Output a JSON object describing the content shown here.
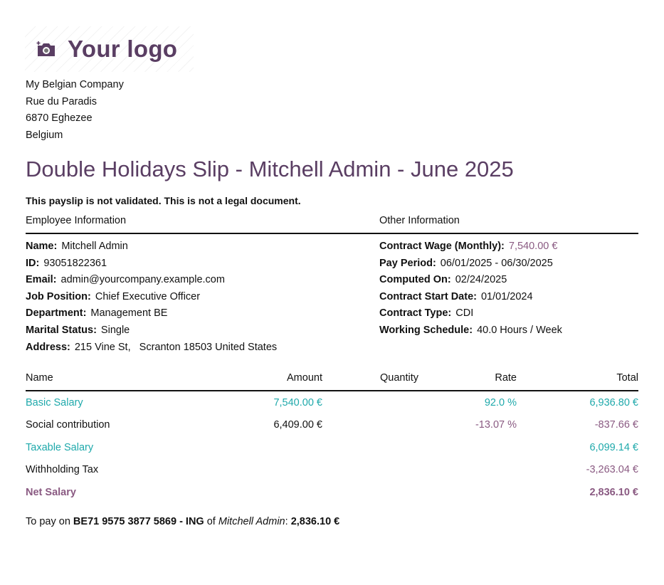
{
  "logo": {
    "text": "Your logo"
  },
  "company": {
    "lines": [
      "My Belgian Company",
      "Rue du Paradis",
      "6870 Eghezee",
      "Belgium"
    ]
  },
  "title": "Double Holidays Slip - Mitchell Admin - June 2025",
  "warning": "This payslip is not validated. This is not a legal document.",
  "employee": {
    "heading": "Employee Information",
    "fields": [
      {
        "label": "Name:",
        "value": "Mitchell Admin"
      },
      {
        "label": "ID:",
        "value": "93051822361"
      },
      {
        "label": "Email:",
        "value": "admin@yourcompany.example.com"
      },
      {
        "label": "Job Position:",
        "value": "Chief Executive Officer"
      },
      {
        "label": "Department:",
        "value": "Management BE"
      },
      {
        "label": "Marital Status:",
        "value": "Single"
      },
      {
        "label": "Address:",
        "value": "215 Vine St,   Scranton 18503 United States"
      }
    ]
  },
  "other": {
    "heading": "Other Information",
    "fields": [
      {
        "label": "Contract Wage (Monthly):",
        "value": "7,540.00 €"
      },
      {
        "label": "Pay Period:",
        "value": "06/01/2025 - 06/30/2025"
      },
      {
        "label": "Computed On:",
        "value": "02/24/2025"
      },
      {
        "label": "Contract Start Date:",
        "value": "01/01/2024"
      },
      {
        "label": "Contract Type:",
        "value": "CDI"
      },
      {
        "label": "Working Schedule:",
        "value": "40.0 Hours / Week"
      }
    ]
  },
  "table": {
    "headers": [
      "Name",
      "Amount",
      "Quantity",
      "Rate",
      "Total"
    ],
    "rows": [
      {
        "name": "Basic Salary",
        "amount": "7,540.00 €",
        "quantity": "",
        "rate": "92.0 %",
        "total": "6,936.80 €"
      },
      {
        "name": "Social contribution",
        "amount": "6,409.00 €",
        "quantity": "",
        "rate": "-13.07 %",
        "total": "-837.66 €"
      },
      {
        "name": "Taxable Salary",
        "amount": "",
        "quantity": "",
        "rate": "",
        "total": "6,099.14 €"
      },
      {
        "name": "Withholding Tax",
        "amount": "",
        "quantity": "",
        "rate": "",
        "total": "-3,263.04 €"
      },
      {
        "name": "Net Salary",
        "amount": "",
        "quantity": "",
        "rate": "",
        "total": "2,836.10 €"
      }
    ]
  },
  "payment": {
    "prefix": "To pay on ",
    "account": "BE71 9575 3877 5869 - ING",
    "of": " of ",
    "employee": "Mitchell Admin",
    "colon": ": ",
    "amount": "2,836.10 €"
  },
  "colors": {
    "brand": "#5a3e63",
    "teal": "#1fa9ab",
    "purple": "#8a5a82"
  }
}
